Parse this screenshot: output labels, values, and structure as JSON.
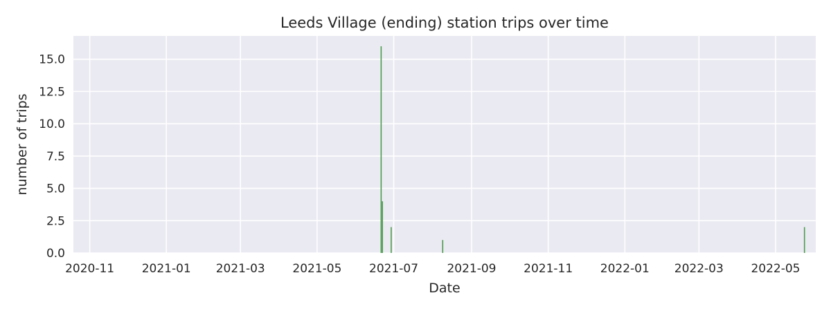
{
  "chart_data": {
    "type": "bar",
    "title": "Leeds Village (ending) station trips over time",
    "xlabel": "Date",
    "ylabel": "number of trips",
    "x_axis_type": "date",
    "xlim": [
      "2020-10-19",
      "2022-06-02"
    ],
    "ylim": [
      0,
      16.8
    ],
    "x_ticks": [
      "2020-11",
      "2021-01",
      "2021-03",
      "2021-05",
      "2021-07",
      "2021-09",
      "2021-11",
      "2022-01",
      "2022-03",
      "2022-05"
    ],
    "y_ticks": [
      "0.0",
      "2.5",
      "5.0",
      "7.5",
      "10.0",
      "12.5",
      "15.0"
    ],
    "grid": true,
    "bar_color": "#4c9a4c",
    "background_color": "#eaeaf2",
    "series": [
      {
        "x": [
          "2021-06-21",
          "2021-06-22",
          "2021-06-29",
          "2021-08-09",
          "2022-05-24"
        ],
        "values": [
          16,
          4,
          2,
          1,
          2
        ]
      }
    ]
  }
}
